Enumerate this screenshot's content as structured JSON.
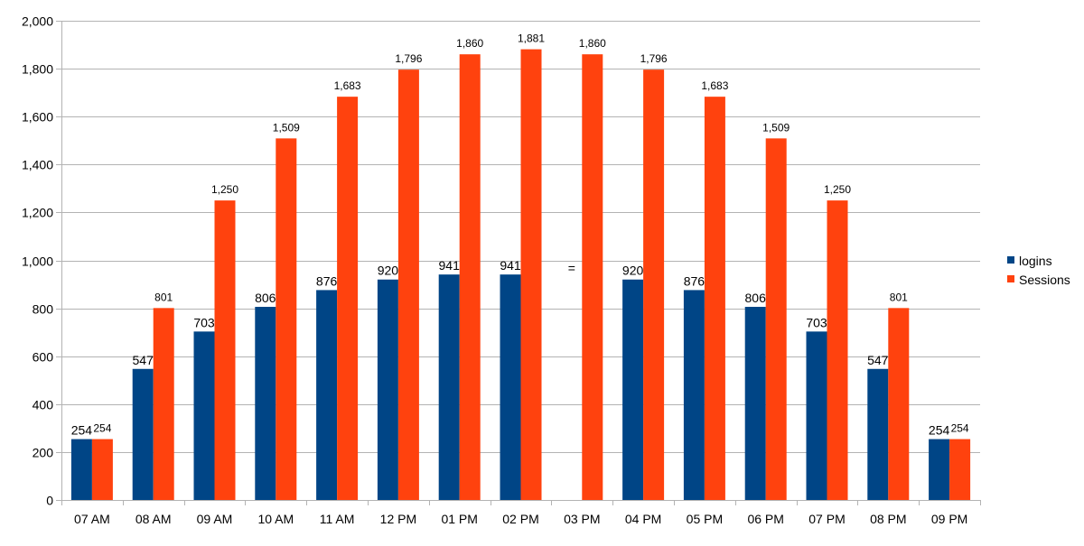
{
  "chart_data": {
    "type": "bar",
    "title": "",
    "xlabel": "",
    "ylabel": "",
    "ylim": [
      0,
      2000
    ],
    "y_ticks": [
      0,
      200,
      400,
      600,
      800,
      1000,
      1200,
      1400,
      1600,
      1800,
      2000
    ],
    "y_tick_labels": [
      "0",
      "200",
      "400",
      "600",
      "800",
      "1,000",
      "1,200",
      "1,400",
      "1,600",
      "1,800",
      "2,000"
    ],
    "grid": true,
    "legend_position": "right",
    "categories": [
      "07 AM",
      "08 AM",
      "09 AM",
      "10 AM",
      "11 AM",
      "12 PM",
      "01 PM",
      "02 PM",
      "03 PM",
      "04 PM",
      "05 PM",
      "06 PM",
      "07 PM",
      "08 PM",
      "09 PM"
    ],
    "series": [
      {
        "name": "logins",
        "color": "#004586",
        "values": [
          254,
          547,
          703,
          806,
          876,
          920,
          941,
          941,
          null,
          920,
          876,
          806,
          703,
          547,
          254
        ],
        "labels": [
          "254",
          "547",
          "703",
          "806",
          "876",
          "920",
          "941",
          "941",
          "=",
          "920",
          "876",
          "806",
          "703",
          "547",
          "254"
        ]
      },
      {
        "name": "Sessions",
        "color": "#ff420e",
        "values": [
          254,
          801,
          1250,
          1509,
          1683,
          1796,
          1860,
          1881,
          1860,
          1796,
          1683,
          1509,
          1250,
          801,
          254
        ],
        "labels": [
          "254",
          "801",
          "1,250",
          "1,509",
          "1,683",
          "1,796",
          "1,860",
          "1,881",
          "1,860",
          "1,796",
          "1,683",
          "1,509",
          "1,250",
          "801",
          "254"
        ]
      }
    ]
  }
}
